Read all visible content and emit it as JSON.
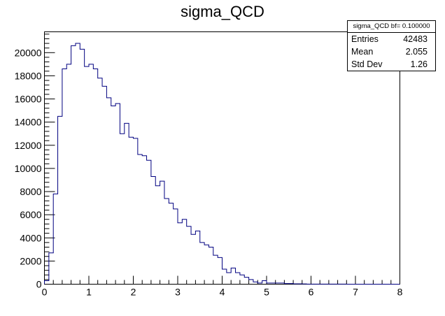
{
  "chart_data": {
    "type": "histogram",
    "title": "sigma_QCD",
    "xlabel": "",
    "ylabel": "",
    "xlim": [
      0,
      8
    ],
    "ylim": [
      0,
      21800
    ],
    "bin_width": 0.1,
    "x_ticks": [
      "0",
      "1",
      "2",
      "3",
      "4",
      "5",
      "6",
      "7",
      "8"
    ],
    "y_ticks": [
      "0",
      "2000",
      "4000",
      "6000",
      "8000",
      "10000",
      "12000",
      "14000",
      "16000",
      "18000",
      "20000"
    ],
    "grid": false,
    "line_color": "#000080",
    "bin_edges_start": 0.0,
    "counts": [
      300,
      2700,
      7800,
      14500,
      18600,
      19000,
      20600,
      20800,
      20300,
      18800,
      19000,
      18600,
      17800,
      17100,
      16100,
      15400,
      15600,
      13000,
      13900,
      12700,
      12600,
      11200,
      11100,
      10700,
      9300,
      8500,
      8900,
      7400,
      7000,
      6500,
      5300,
      5600,
      5000,
      4300,
      4600,
      3600,
      3400,
      3200,
      2500,
      2300,
      1300,
      1000,
      1400,
      1000,
      800,
      600,
      400,
      200,
      100,
      300,
      100,
      100,
      100,
      100,
      50,
      50,
      30,
      30,
      20,
      10,
      10,
      10,
      10,
      10,
      10,
      5,
      5,
      5,
      0,
      0,
      0,
      0,
      0,
      0,
      0,
      0,
      0,
      0,
      0,
      0
    ],
    "stats": {
      "title": "sigma_QCD bf= 0.100000",
      "rows": [
        {
          "label": "Entries",
          "value": "42483"
        },
        {
          "label": "Mean",
          "value": "2.055"
        },
        {
          "label": "Std Dev",
          "value": "1.26"
        }
      ]
    }
  }
}
